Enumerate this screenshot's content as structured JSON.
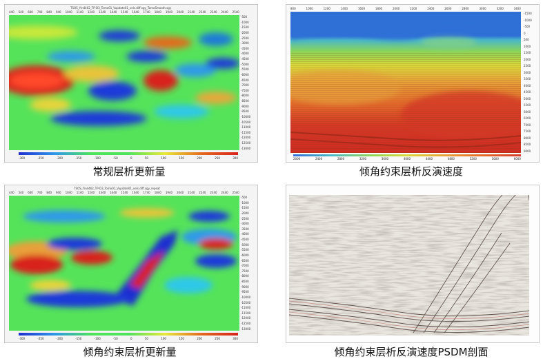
{
  "panels": {
    "tl": {
      "title": "TSOS_Yin4462_TP-D3_Tomo01_Vupdate01_vels.diff.sgy_TomoSmooth.sgy",
      "caption": "常规层析更新量",
      "top_ticks": [
        "440",
        "540",
        "640",
        "740",
        "840",
        "940",
        "1040",
        "1140",
        "1240",
        "1340",
        "1440",
        "1540",
        "1640",
        "1740",
        "1840",
        "1940",
        "2040",
        "2140",
        "2240",
        "2340",
        "2440",
        "2540"
      ],
      "right_ticks": [
        "-500",
        "-1000",
        "-1500",
        "-2000",
        "-2500",
        "-3000",
        "-3500",
        "-4000",
        "-4500",
        "-5000",
        "-5500",
        "-6000",
        "-6500",
        "-7000",
        "-7500",
        "-8000",
        "-8500",
        "-9000",
        "-9500",
        "-10000",
        "-10500",
        "-11000",
        "-11500",
        "-12000",
        "-12500",
        "-13000"
      ],
      "colorbar_labels": [
        "-300",
        "-250",
        "-200",
        "-150",
        "-100",
        "-50",
        "0",
        "50",
        "100",
        "150",
        "200",
        "250",
        "300"
      ]
    },
    "tr": {
      "caption": "倾角约束层析反演速度",
      "top_ticks": [
        "800",
        "1000",
        "1200",
        "1400",
        "1600",
        "1800",
        "2000",
        "2200",
        "2400",
        "2600",
        "2800",
        "3000",
        "3200",
        "3400"
      ],
      "right_ticks": [
        "-1500",
        "-1000",
        "-500",
        "0",
        "500",
        "1000",
        "1500",
        "2000",
        "2500",
        "3000",
        "3500",
        "4000",
        "4500",
        "5000",
        "5500",
        "6000",
        "6500",
        "7000",
        "7500",
        "8000",
        "8500",
        "9000"
      ],
      "colorbar_labels": [
        "2000",
        "2400",
        "2800",
        "3200",
        "3600",
        "4000",
        "4400",
        "4800",
        "5200",
        "5600",
        "6000"
      ]
    },
    "bl": {
      "title": "TSOS_Yin4462_TP-D3_Tomo01_Vupdate01_vels.diff.sgy_repeat",
      "caption": "倾角约束层析更新量",
      "top_ticks": [
        "440",
        "540",
        "640",
        "740",
        "840",
        "940",
        "1040",
        "1140",
        "1240",
        "1340",
        "1440",
        "1540",
        "1640",
        "1740",
        "1840",
        "1940",
        "2040",
        "2140",
        "2240",
        "2340",
        "2440",
        "2540"
      ],
      "right_ticks": [
        "-500",
        "-1000",
        "-1500",
        "-2000",
        "-2500",
        "-3000",
        "-3500",
        "-4000",
        "-4500",
        "-5000",
        "-5500",
        "-6000",
        "-6500",
        "-7000",
        "-7500",
        "-8000",
        "-8500",
        "-9000",
        "-9500",
        "-10000",
        "-10500",
        "-11000",
        "-11500",
        "-12000",
        "-12500",
        "-13000"
      ],
      "colorbar_labels": [
        "-300",
        "-250",
        "-200",
        "-150",
        "-100",
        "-50",
        "0",
        "50",
        "100",
        "150",
        "200",
        "250",
        "300"
      ]
    },
    "br": {
      "caption": "倾角约束层析反演速度PSDM剖面"
    }
  },
  "colors": {
    "diff_low": "#1f2fd0",
    "diff_mid": "#4ee35a",
    "diff_high": "#d8221b",
    "vel_low": "#2f6fd6",
    "vel_high": "#d63a26"
  }
}
